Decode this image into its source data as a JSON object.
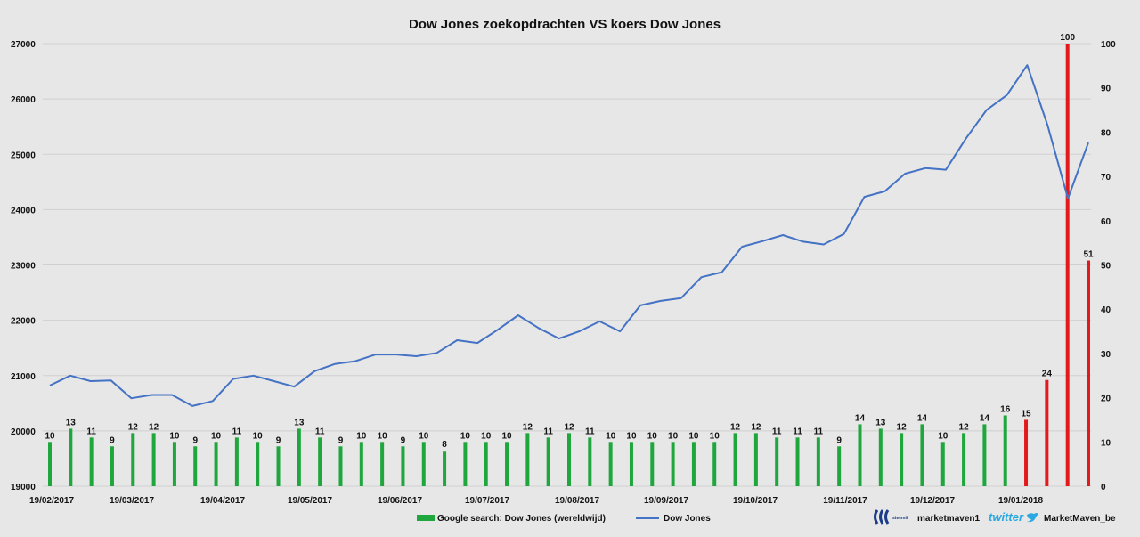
{
  "chart_data": {
    "type": "bar+line",
    "title": "Dow Jones zoekopdrachten VS koers Dow Jones",
    "x_tick_labels": [
      "19/02/2017",
      "19/03/2017",
      "19/04/2017",
      "19/05/2017",
      "19/06/2017",
      "19/07/2017",
      "19/08/2017",
      "19/09/2017",
      "19/10/2017",
      "19/11/2017",
      "19/12/2017",
      "19/01/2018"
    ],
    "left_axis": {
      "ticks": [
        "19000",
        "20000",
        "21000",
        "22000",
        "23000",
        "24000",
        "25000",
        "26000",
        "27000"
      ],
      "ylim": [
        19000,
        27000
      ]
    },
    "right_axis": {
      "ticks": [
        "0",
        "10",
        "20",
        "30",
        "40",
        "50",
        "60",
        "70",
        "80",
        "90",
        "100"
      ],
      "ylim": [
        0,
        100
      ]
    },
    "grid": true,
    "legend_position": "bottom",
    "series": [
      {
        "name": "Google search: Dow Jones (wereldwijd)",
        "type": "bar",
        "axis": "right",
        "color": "#1fa63c",
        "highlight_color": "#e31a1c",
        "highlight_from_index": 47,
        "values": [
          10,
          13,
          11,
          9,
          12,
          12,
          10,
          9,
          10,
          11,
          10,
          9,
          13,
          11,
          9,
          10,
          10,
          9,
          10,
          8,
          10,
          10,
          10,
          12,
          11,
          12,
          11,
          10,
          10,
          10,
          10,
          10,
          10,
          12,
          12,
          11,
          11,
          11,
          9,
          14,
          13,
          12,
          14,
          10,
          12,
          14,
          16,
          15,
          24,
          100,
          51
        ],
        "labels": [
          "10",
          "13",
          "11",
          "9",
          "12",
          "12",
          "10",
          "9",
          "10",
          "11",
          "10",
          "9",
          "13",
          "11",
          "9",
          "10",
          "10",
          "9",
          "10",
          "8",
          "10",
          "10",
          "10",
          "12",
          "11",
          "12",
          "11",
          "10",
          "10",
          "10",
          "10",
          "10",
          "10",
          "12",
          "12",
          "11",
          "11",
          "11",
          "9",
          "14",
          "13",
          "12",
          "14",
          "10",
          "12",
          "14",
          "16",
          "15",
          "24",
          "100",
          "51"
        ]
      },
      {
        "name": "Dow Jones",
        "type": "line",
        "axis": "left",
        "color": "#4472c4",
        "values": [
          20820,
          21000,
          20900,
          20910,
          20590,
          20650,
          20650,
          20450,
          20540,
          20940,
          21000,
          20900,
          20800,
          21080,
          21210,
          21260,
          21380,
          21380,
          21350,
          21410,
          21640,
          21590,
          21830,
          22090,
          21860,
          21670,
          21800,
          21980,
          21800,
          22270,
          22350,
          22400,
          22780,
          22870,
          23330,
          23430,
          23540,
          23420,
          23370,
          23560,
          24230,
          24330,
          24650,
          24750,
          24720,
          25290,
          25800,
          26070,
          26610,
          25520,
          24200,
          25210
        ]
      }
    ]
  },
  "footer": {
    "steemit_label": "steemit",
    "steemit_user": "marketmaven1",
    "twitter_label": "twitter",
    "twitter_user": "MarketMaven_be"
  },
  "colors": {
    "background": "#e7e7e7",
    "grid": "#d0d0d0",
    "bar": "#1fa63c",
    "bar_highlight": "#e31a1c",
    "line": "#4472c4"
  },
  "icons": {
    "steemit": "steemit-logo-icon",
    "twitter": "twitter-bird-icon"
  }
}
